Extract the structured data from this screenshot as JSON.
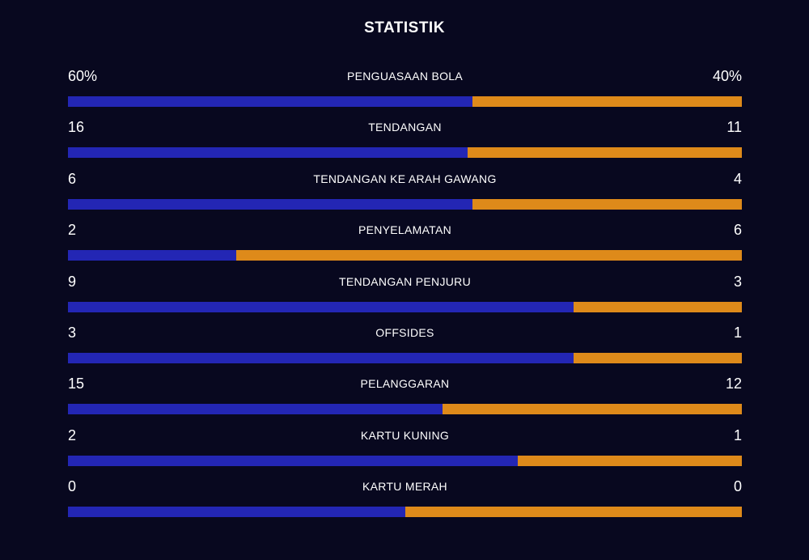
{
  "title": "STATISTIK",
  "colors": {
    "background": "#08081f",
    "home": "#2326b4",
    "away": "#de8a1a"
  },
  "stats": [
    {
      "label": "PENGUASAAN BOLA",
      "home": "60%",
      "away": "40%",
      "home_share": 0.6
    },
    {
      "label": "TENDANGAN",
      "home": "16",
      "away": "11",
      "home_share": 0.593
    },
    {
      "label": "TENDANGAN KE ARAH GAWANG",
      "home": "6",
      "away": "4",
      "home_share": 0.6
    },
    {
      "label": "PENYELAMATAN",
      "home": "2",
      "away": "6",
      "home_share": 0.25
    },
    {
      "label": "TENDANGAN PENJURU",
      "home": "9",
      "away": "3",
      "home_share": 0.75
    },
    {
      "label": "OFFSIDES",
      "home": "3",
      "away": "1",
      "home_share": 0.75
    },
    {
      "label": "PELANGGARAN",
      "home": "15",
      "away": "12",
      "home_share": 0.556
    },
    {
      "label": "KARTU KUNING",
      "home": "2",
      "away": "1",
      "home_share": 0.667
    },
    {
      "label": "KARTU MERAH",
      "home": "0",
      "away": "0",
      "home_share": 0.5
    }
  ]
}
